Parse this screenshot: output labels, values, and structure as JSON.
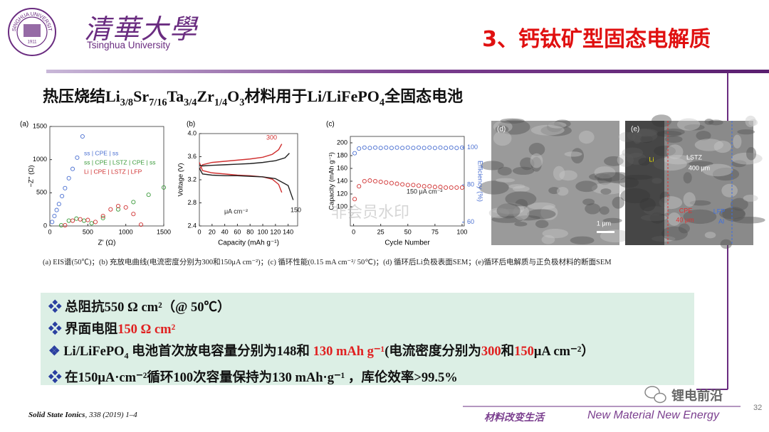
{
  "header": {
    "logo_text": "TSINGHUA UNIVERSITY",
    "logo_year": "1911",
    "university_cn": "清華大學",
    "university_en": "Tsinghua University",
    "title": "3、钙钛矿型固态电解质"
  },
  "subtitle": [
    {
      "text": "热压烧结Li"
    },
    {
      "text": "3/8",
      "style": "sub"
    },
    {
      "text": "Sr"
    },
    {
      "text": "7/16",
      "style": "sub"
    },
    {
      "text": "Ta"
    },
    {
      "text": "3/4",
      "style": "sub"
    },
    {
      "text": "Zr"
    },
    {
      "text": "1/4",
      "style": "sub"
    },
    {
      "text": "O"
    },
    {
      "text": "3",
      "style": "sub"
    },
    {
      "text": "材料用于Li/LiFePO"
    },
    {
      "text": "4",
      "style": "sub"
    },
    {
      "text": "全固态电池"
    }
  ],
  "figure": {
    "panels": [
      {
        "type": "scatter",
        "label": "(a)",
        "xlabel": "Z' (Ω)",
        "ylabel": "−Z'' (Ω)",
        "xlim": [
          0,
          1500
        ],
        "xticks": [
          0,
          500,
          1000,
          1500
        ],
        "ylim": [
          0,
          1500
        ],
        "yticks": [
          0,
          500,
          1000,
          1500
        ],
        "series": [
          {
            "name": "ss | CPE | ss",
            "color": "#4a6fd1",
            "x": [
              30,
              60,
              90,
              120,
              160,
              200,
              250,
              300,
              360,
              430
            ],
            "values": [
              60,
              150,
              240,
              330,
              450,
              570,
              720,
              860,
              1030,
              1350
            ]
          },
          {
            "name": "ss | CPE | LSTZ | CPE | ss",
            "color": "#3a9a3a",
            "x": [
              150,
              250,
              350,
              450,
              550,
              700,
              900,
              1100,
              1300,
              1500
            ],
            "values": [
              10,
              80,
              110,
              80,
              40,
              120,
              250,
              360,
              470,
              580
            ]
          },
          {
            "name": "Li | CPE | LSTZ | LFP",
            "color": "#d03030",
            "x": [
              200,
              300,
              400,
              500,
              600,
              700,
              800,
              900,
              1000,
              1100,
              1200
            ],
            "values": [
              10,
              80,
              100,
              90,
              60,
              150,
              250,
              300,
              280,
              180,
              20
            ]
          }
        ]
      },
      {
        "type": "line",
        "label": "(b)",
        "xlabel": "Capacity (mAh g⁻¹)",
        "ylabel": "Voltage (V)",
        "xlim": [
          0,
          155
        ],
        "xticks": [
          0,
          20,
          40,
          60,
          80,
          100,
          120,
          140
        ],
        "ylim": [
          2.4,
          4.0
        ],
        "yticks": [
          2.4,
          2.8,
          3.2,
          3.6,
          {
            "value": 4,
            "label": "4.0"
          }
        ],
        "series": [
          {
            "color": "#d03030",
            "x": [
              0,
              5,
              20,
              40,
              60,
              80,
              100,
              115,
              125,
              130
            ],
            "values": [
              3.38,
              3.46,
              3.5,
              3.52,
              3.54,
              3.56,
              3.59,
              3.64,
              3.72,
              3.82
            ]
          },
          {
            "color": "#d03030",
            "x": [
              0,
              5,
              20,
              40,
              60,
              80,
              100,
              115,
              125,
              130
            ],
            "values": [
              3.5,
              3.36,
              3.32,
              3.3,
              3.28,
              3.27,
              3.25,
              3.21,
              3.12,
              2.98
            ]
          },
          {
            "color": "#222222",
            "x": [
              0,
              5,
              20,
              40,
              60,
              80,
              100,
              120,
              135,
              142
            ],
            "values": [
              3.45,
              3.44,
              3.45,
              3.46,
              3.47,
              3.48,
              3.5,
              3.53,
              3.58,
              3.66
            ]
          },
          {
            "color": "#222222",
            "x": [
              0,
              5,
              20,
              40,
              60,
              80,
              100,
              120,
              140,
              148
            ],
            "values": [
              3.4,
              3.3,
              3.28,
              3.27,
              3.27,
              3.26,
              3.25,
              3.22,
              3.1,
              2.85
            ]
          }
        ],
        "annotations": [
          {
            "text": "300",
            "color": "#d03030"
          },
          {
            "text": "150",
            "color": "#222222"
          },
          {
            "text": "μA cm⁻²",
            "color": "#222222"
          }
        ]
      },
      {
        "type": "scatter",
        "label": "(c)",
        "xlabel": "Cycle Number",
        "ylabel": "Capacity (mAh g⁻¹)",
        "y2label": "Efficiency (%)",
        "xlim": [
          -3,
          102
        ],
        "xticks": [
          0,
          25,
          50,
          75,
          100
        ],
        "ylim": [
          70,
          210
        ],
        "yticks": [
          100,
          120,
          140,
          160,
          180,
          200
        ],
        "y2lim": [
          58,
          106
        ],
        "y2ticks": [
          60,
          80,
          100
        ],
        "series": [
          {
            "color": "#d03030",
            "x": [
              1,
              5,
              10,
              15,
              20,
              25,
              30,
              35,
              40,
              45,
              50,
              55,
              60,
              65,
              70,
              75,
              80,
              85,
              90,
              95,
              100
            ],
            "values": [
              112,
              132,
              140,
              141,
              140,
              139,
              138,
              137,
              136,
              135,
              134,
              134,
              133,
              132,
              132,
              131,
              131,
              130,
              130,
              130,
              130
            ]
          },
          {
            "color": "#4a6fd1",
            "axis": "y2",
            "x": [
              1,
              5,
              10,
              15,
              20,
              25,
              30,
              35,
              40,
              45,
              50,
              55,
              60,
              65,
              70,
              75,
              80,
              85,
              90,
              95,
              100
            ],
            "values": [
              97,
              99.5,
              100,
              99.8,
              100,
              99.8,
              100,
              99.8,
              100,
              99.8,
              100,
              99.8,
              100,
              99.8,
              100,
              99.8,
              100,
              99.8,
              100,
              99.8,
              100
            ]
          }
        ],
        "annotations": [
          {
            "text": "150 μA cm⁻²",
            "color": "#222222"
          }
        ]
      }
    ],
    "images": [
      {
        "label": "(d)",
        "texts": [
          {
            "text": "1 μm",
            "color": "#ffffff"
          }
        ]
      },
      {
        "label": "(e)",
        "texts": [
          {
            "text": "Li",
            "color": "#e8e000"
          },
          {
            "text": "LSTZ",
            "color": "#ffffff"
          },
          {
            "text": "400 μm",
            "color": "#ffffff"
          },
          {
            "text": "CPE",
            "color": "#e03030"
          },
          {
            "text": "40 μm",
            "color": "#e03030"
          },
          {
            "text": "LFP",
            "color": "#3d6fe0"
          },
          {
            "text": "Al",
            "color": "#3d6fe0"
          }
        ]
      }
    ],
    "watermark": "非会员水印",
    "caption": "(a) EIS谱(50℃)；(b) 充放电曲线(电流密度分别为300和150μA cm⁻²)；(c) 循环性能(0.15 mA cm⁻²/ 50℃)；(d) 循环后Li负极表面SEM；(e)循环后电解质与正负极材料的断面SEM"
  },
  "bullets": [
    {
      "parts": [
        {
          "text": "总阻抗550 Ω cm²（@ 50℃）"
        }
      ]
    },
    {
      "parts": [
        {
          "text": "界面电阻"
        },
        {
          "text": "150 Ω cm²",
          "color": "#e02020"
        }
      ]
    },
    {
      "parts": [
        {
          "text": "Li/LiFePO"
        },
        {
          "text": "4",
          "style": "sub"
        },
        {
          "text": " 电池首次放电容量分别为148和 "
        },
        {
          "text": "130 mAh g⁻¹",
          "color": "#e02020"
        },
        {
          "text": "(电流密度分别为"
        },
        {
          "text": "300",
          "color": "#e02020"
        },
        {
          "text": "和"
        },
        {
          "text": "150",
          "color": "#e02020"
        },
        {
          "text": "μA cm⁻²）"
        }
      ]
    },
    {
      "parts": [
        {
          "text": "在150μA·cm⁻²循环100次容量保持为130 mAh·g⁻¹ ，库伦效率>99.5%"
        }
      ]
    }
  ],
  "footer": {
    "reference": [
      {
        "text": "Solid State Ionics",
        "bold": true
      },
      {
        "text": ", 338 (2019) 1–4"
      }
    ],
    "slogan_cn": "材料改变生活",
    "slogan_en": "New Material New Energy",
    "page": "32",
    "wechat": "锂电前沿"
  }
}
